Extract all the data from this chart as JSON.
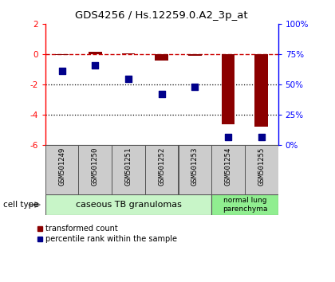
{
  "title": "GDS4256 / Hs.12259.0.A2_3p_at",
  "samples": [
    "GSM501249",
    "GSM501250",
    "GSM501251",
    "GSM501252",
    "GSM501253",
    "GSM501254",
    "GSM501255"
  ],
  "transformed_count": [
    -0.05,
    0.15,
    0.05,
    -0.4,
    -0.1,
    -4.6,
    -4.75
  ],
  "percentile_rank": [
    61,
    66,
    55,
    42,
    48,
    7,
    7
  ],
  "ylim_left": [
    -6,
    2
  ],
  "ylim_right": [
    0,
    100
  ],
  "yticks_left": [
    -6,
    -4,
    -2,
    0,
    2
  ],
  "yticks_right": [
    0,
    25,
    50,
    75,
    100
  ],
  "ytick_labels_right": [
    "0%",
    "25%",
    "50%",
    "75%",
    "100%"
  ],
  "bar_color": "#8B0000",
  "scatter_color": "#00008B",
  "dashed_line_color": "#CC0000",
  "group1_label": "caseous TB granulomas",
  "group2_label": "normal lung\nparenchyma",
  "group1_color": "#c8f5c8",
  "group2_color": "#90ee90",
  "sample_box_color": "#cccccc",
  "cell_type_label": "cell type",
  "legend1": "transformed count",
  "legend2": "percentile rank within the sample",
  "arrow_color": "#888888"
}
